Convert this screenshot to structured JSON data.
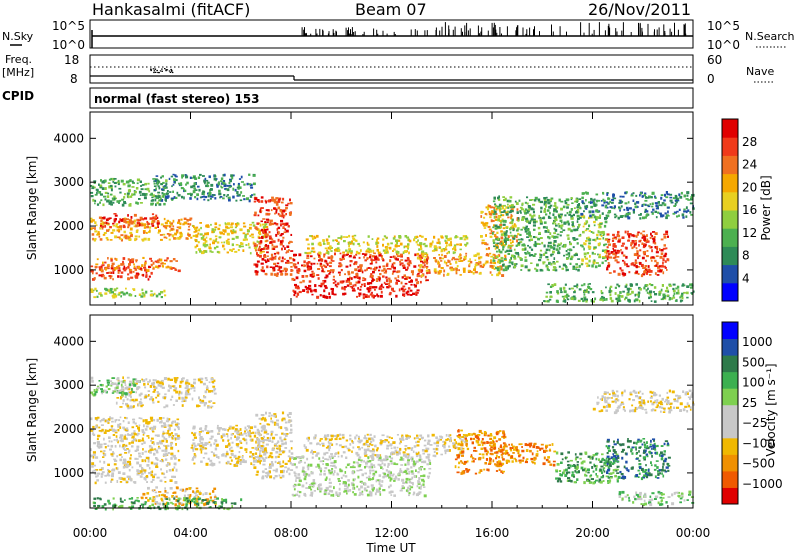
{
  "header": {
    "station": "Hankasalmi (fitACF)",
    "beam": "Beam 07",
    "date": "26/Nov/2011"
  },
  "top_strips": {
    "nsky_label": "N.Sky",
    "nsky_ticks": [
      "10^5",
      "10^0"
    ],
    "nsearch_label": "N.Search",
    "nsearch_ticks": [
      "10^5",
      "10^0"
    ],
    "freq_label_1": "Freq.",
    "freq_label_2": "[MHz]",
    "freq_ticks": [
      "18",
      "8"
    ],
    "nave_label": "Nave",
    "nave_ticks": [
      "60",
      "0"
    ],
    "cpid_label": "CPID",
    "cpid_text": "normal (fast stereo) 153"
  },
  "chart_data": [
    {
      "type": "heatmap",
      "name": "power",
      "ylabel": "Slant Range [km]",
      "xlabel": "",
      "x_ticks": [
        "00:00",
        "04:00",
        "08:00",
        "12:00",
        "16:00",
        "20:00",
        "00:00"
      ],
      "x_range_hours": [
        0,
        24
      ],
      "y_ticks": [
        1000,
        2000,
        3000,
        4000
      ],
      "ylim": [
        200,
        4600
      ],
      "colorbar": {
        "label": "Power [dB]",
        "ticks": [
          "28",
          "24",
          "20",
          "16",
          "12",
          "8",
          "4"
        ],
        "colors": [
          "#0000ff",
          "#1f4fa8",
          "#2e8b57",
          "#4cb050",
          "#8fce3f",
          "#e8d020",
          "#f5a800",
          "#f07020",
          "#f03a1a",
          "#e00000"
        ]
      },
      "regions": [
        {
          "t": [
            0.0,
            3.0
          ],
          "r": [
            400,
            600
          ],
          "level": 4
        },
        {
          "t": [
            0.0,
            2.5
          ],
          "r": [
            800,
            1100
          ],
          "level": 8
        },
        {
          "t": [
            0.2,
            3.5
          ],
          "r": [
            1000,
            1300
          ],
          "level": 7
        },
        {
          "t": [
            0.0,
            4.0
          ],
          "r": [
            1700,
            2200
          ],
          "level": 6
        },
        {
          "t": [
            0.3,
            2.8
          ],
          "r": [
            2000,
            2300
          ],
          "level": 8
        },
        {
          "t": [
            0.0,
            3.0
          ],
          "r": [
            2500,
            3100
          ],
          "level": 3
        },
        {
          "t": [
            2.5,
            6.5
          ],
          "r": [
            2600,
            3200
          ],
          "level": 2
        },
        {
          "t": [
            4.0,
            7.0
          ],
          "r": [
            1400,
            2100
          ],
          "level": 5
        },
        {
          "t": [
            6.5,
            8.0
          ],
          "r": [
            900,
            2700
          ],
          "level": 8
        },
        {
          "t": [
            8.0,
            13.0
          ],
          "r": [
            400,
            700
          ],
          "level": 9
        },
        {
          "t": [
            8.0,
            13.5
          ],
          "r": [
            700,
            1400
          ],
          "level": 8
        },
        {
          "t": [
            8.5,
            15.0
          ],
          "r": [
            1400,
            1800
          ],
          "level": 5
        },
        {
          "t": [
            13.0,
            16.5
          ],
          "r": [
            900,
            1400
          ],
          "level": 6
        },
        {
          "t": [
            15.5,
            17.0
          ],
          "r": [
            1500,
            2500
          ],
          "level": 6
        },
        {
          "t": [
            16.0,
            19.5
          ],
          "r": [
            1000,
            2700
          ],
          "level": 3
        },
        {
          "t": [
            19.5,
            20.5
          ],
          "r": [
            1100,
            2300
          ],
          "level": 4
        },
        {
          "t": [
            20.5,
            23.0
          ],
          "r": [
            900,
            1900
          ],
          "level": 8
        },
        {
          "t": [
            19.5,
            24.0
          ],
          "r": [
            2200,
            2800
          ],
          "level": 2
        },
        {
          "t": [
            18.0,
            24.0
          ],
          "r": [
            300,
            700
          ],
          "level": 3
        }
      ]
    },
    {
      "type": "heatmap",
      "name": "velocity",
      "ylabel": "Slant Range [km]",
      "xlabel": "Time UT",
      "x_ticks": [
        "00:00",
        "04:00",
        "08:00",
        "12:00",
        "16:00",
        "20:00",
        "00:00"
      ],
      "x_range_hours": [
        0,
        24
      ],
      "y_ticks": [
        1000,
        2000,
        3000,
        4000
      ],
      "ylim": [
        200,
        4600
      ],
      "colorbar": {
        "label": "Velocity [m s⁻¹]",
        "ticks": [
          "1000",
          "500",
          "100",
          "25",
          "−25",
          "−100",
          "−500",
          "−1000"
        ],
        "colors": [
          "#e00000",
          "#f05a00",
          "#f09000",
          "#f0b800",
          "#c8c8c8",
          "#c8c8c8",
          "#7ed050",
          "#3cb050",
          "#2e7a4a",
          "#1f4fa8",
          "#0000ff"
        ]
      },
      "regions": [
        {
          "t": [
            0.0,
            3.5
          ],
          "r": [
            800,
            2300
          ],
          "level": 4
        },
        {
          "t": [
            1.0,
            5.0
          ],
          "r": [
            2500,
            3200
          ],
          "level": 4
        },
        {
          "t": [
            0.0,
            2.0
          ],
          "r": [
            2800,
            3200
          ],
          "level": 6
        },
        {
          "t": [
            2.0,
            5.0
          ],
          "r": [
            300,
            700
          ],
          "level": 3
        },
        {
          "t": [
            4.0,
            7.0
          ],
          "r": [
            1200,
            2100
          ],
          "level": 4
        },
        {
          "t": [
            6.5,
            8.0
          ],
          "r": [
            900,
            2400
          ],
          "level": 4
        },
        {
          "t": [
            8.0,
            13.5
          ],
          "r": [
            500,
            1400
          ],
          "level": 5
        },
        {
          "t": [
            8.5,
            15.0
          ],
          "r": [
            1400,
            1900
          ],
          "level": 4
        },
        {
          "t": [
            14.5,
            16.5
          ],
          "r": [
            1000,
            2000
          ],
          "level": 2
        },
        {
          "t": [
            16.0,
            18.5
          ],
          "r": [
            1200,
            1700
          ],
          "level": 2
        },
        {
          "t": [
            18.5,
            21.0
          ],
          "r": [
            800,
            1500
          ],
          "level": 7
        },
        {
          "t": [
            20.5,
            23.0
          ],
          "r": [
            900,
            1800
          ],
          "level": 8
        },
        {
          "t": [
            20.0,
            24.0
          ],
          "r": [
            2400,
            2900
          ],
          "level": 4
        },
        {
          "t": [
            21.0,
            24.0
          ],
          "r": [
            300,
            600
          ],
          "level": 6
        },
        {
          "t": [
            0.0,
            6.0
          ],
          "r": [
            200,
            450
          ],
          "level": 7
        }
      ]
    }
  ]
}
